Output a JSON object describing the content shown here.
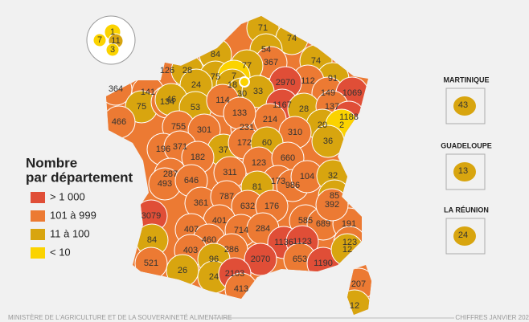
{
  "legend": {
    "title_line1": "Nombre",
    "title_line2": "par département",
    "items": [
      {
        "label": "> 1 000",
        "color": "#e04e37"
      },
      {
        "label": "101 à 999",
        "color": "#ec7a33"
      },
      {
        "label": "11 à 100",
        "color": "#d8a50f"
      },
      {
        "label": "< 10",
        "color": "#fbd300"
      }
    ]
  },
  "departments": [
    {
      "value": 71,
      "color": "#d8a50f"
    },
    {
      "value": 74,
      "color": "#d8a50f"
    },
    {
      "value": 84,
      "color": "#d8a50f"
    },
    {
      "value": 54,
      "color": "#d8a50f"
    },
    {
      "value": 367,
      "color": "#ec7a33"
    },
    {
      "value": 74,
      "color": "#d8a50f"
    },
    {
      "value": 77,
      "color": "#d8a50f"
    },
    {
      "value": 126,
      "color": "#ec7a33"
    },
    {
      "value": 28,
      "color": "#d8a50f"
    },
    {
      "value": 75,
      "color": "#d8a50f"
    },
    {
      "value": 7,
      "color": "#fbd300"
    },
    {
      "value": 18,
      "color": "#d8a50f"
    },
    {
      "value": 91,
      "color": "#d8a50f"
    },
    {
      "value": 112,
      "color": "#ec7a33"
    },
    {
      "value": 2970,
      "color": "#e04e37"
    },
    {
      "value": 364,
      "color": "#ec7a33"
    },
    {
      "value": 141,
      "color": "#ec7a33"
    },
    {
      "value": 24,
      "color": "#d8a50f"
    },
    {
      "value": 30,
      "color": "#d8a50f"
    },
    {
      "value": 33,
      "color": "#d8a50f"
    },
    {
      "value": 149,
      "color": "#ec7a33"
    },
    {
      "value": 1069,
      "color": "#e04e37"
    },
    {
      "value": 75,
      "color": "#d8a50f"
    },
    {
      "value": 134,
      "color": "#ec7a33"
    },
    {
      "value": 46,
      "color": "#d8a50f"
    },
    {
      "value": 53,
      "color": "#d8a50f"
    },
    {
      "value": 114,
      "color": "#ec7a33"
    },
    {
      "value": 1167,
      "color": "#e04e37"
    },
    {
      "value": 28,
      "color": "#d8a50f"
    },
    {
      "value": 137,
      "color": "#ec7a33"
    },
    {
      "value": 466,
      "color": "#ec7a33"
    },
    {
      "value": 755,
      "color": "#ec7a33"
    },
    {
      "value": 301,
      "color": "#ec7a33"
    },
    {
      "value": 231,
      "color": "#ec7a33"
    },
    {
      "value": 214,
      "color": "#ec7a33"
    },
    {
      "value": 1188,
      "color": "#e04e37"
    },
    {
      "value": 20,
      "color": "#d8a50f"
    },
    {
      "value": 2,
      "color": "#fbd300"
    },
    {
      "value": 133,
      "color": "#ec7a33"
    },
    {
      "value": 310,
      "color": "#ec7a33"
    },
    {
      "value": 196,
      "color": "#ec7a33"
    },
    {
      "value": 371,
      "color": "#ec7a33"
    },
    {
      "value": 37,
      "color": "#d8a50f"
    },
    {
      "value": 172,
      "color": "#ec7a33"
    },
    {
      "value": 60,
      "color": "#d8a50f"
    },
    {
      "value": 36,
      "color": "#d8a50f"
    },
    {
      "value": 182,
      "color": "#ec7a33"
    },
    {
      "value": 123,
      "color": "#ec7a33"
    },
    {
      "value": 660,
      "color": "#ec7a33"
    },
    {
      "value": 287,
      "color": "#ec7a33"
    },
    {
      "value": 311,
      "color": "#ec7a33"
    },
    {
      "value": 173,
      "color": "#ec7a33"
    },
    {
      "value": 986,
      "color": "#ec7a33"
    },
    {
      "value": 104,
      "color": "#ec7a33"
    },
    {
      "value": 32,
      "color": "#d8a50f"
    },
    {
      "value": 493,
      "color": "#ec7a33"
    },
    {
      "value": 646,
      "color": "#ec7a33"
    },
    {
      "value": 81,
      "color": "#d8a50f"
    },
    {
      "value": 361,
      "color": "#ec7a33"
    },
    {
      "value": 787,
      "color": "#ec7a33"
    },
    {
      "value": 632,
      "color": "#ec7a33"
    },
    {
      "value": 176,
      "color": "#ec7a33"
    },
    {
      "value": 85,
      "color": "#d8a50f"
    },
    {
      "value": 3079,
      "color": "#e04e37"
    },
    {
      "value": 401,
      "color": "#ec7a33"
    },
    {
      "value": 585,
      "color": "#ec7a33"
    },
    {
      "value": 689,
      "color": "#ec7a33"
    },
    {
      "value": 191,
      "color": "#ec7a33"
    },
    {
      "value": 392,
      "color": "#ec7a33"
    },
    {
      "value": 84,
      "color": "#d8a50f"
    },
    {
      "value": 407,
      "color": "#ec7a33"
    },
    {
      "value": 460,
      "color": "#ec7a33"
    },
    {
      "value": 714,
      "color": "#ec7a33"
    },
    {
      "value": 284,
      "color": "#ec7a33"
    },
    {
      "value": 403,
      "color": "#ec7a33"
    },
    {
      "value": 286,
      "color": "#ec7a33"
    },
    {
      "value": 1136,
      "color": "#e04e37"
    },
    {
      "value": 1123,
      "color": "#e04e37"
    },
    {
      "value": 123,
      "color": "#ec7a33"
    },
    {
      "value": 521,
      "color": "#ec7a33"
    },
    {
      "value": 96,
      "color": "#d8a50f"
    },
    {
      "value": 2070,
      "color": "#e04e37"
    },
    {
      "value": 653,
      "color": "#ec7a33"
    },
    {
      "value": 1190,
      "color": "#e04e37"
    },
    {
      "value": 12,
      "color": "#d8a50f"
    },
    {
      "value": 26,
      "color": "#d8a50f"
    },
    {
      "value": 24,
      "color": "#d8a50f"
    },
    {
      "value": 2103,
      "color": "#e04e37"
    },
    {
      "value": 413,
      "color": "#ec7a33"
    },
    {
      "value": 207,
      "color": "#ec7a33"
    },
    {
      "value": 12,
      "color": "#d8a50f"
    }
  ],
  "paris_inset": [
    {
      "value": 1,
      "color": "#fbd300"
    },
    {
      "value": 7,
      "color": "#fbd300"
    },
    {
      "value": 11,
      "color": "#d8a50f"
    },
    {
      "value": 3,
      "color": "#fbd300"
    }
  ],
  "overseas": [
    {
      "name": "MARTINIQUE",
      "value": 43,
      "color": "#d8a50f"
    },
    {
      "name": "GUADELOUPE",
      "value": 13,
      "color": "#d8a50f"
    },
    {
      "name": "LA RÉUNION",
      "value": 24,
      "color": "#d8a50f"
    }
  ],
  "footer": {
    "left": "MINISTÈRE DE L'AGRICULTURE ET DE LA SOUVERAINETÉ ALIMENTAIRE",
    "right": "CHIFFRES JANVIER 202"
  }
}
